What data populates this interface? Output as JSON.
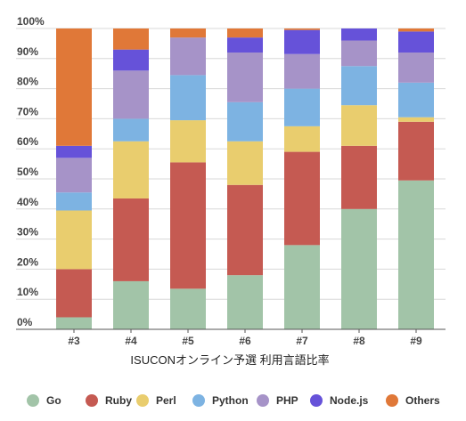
{
  "chart_data": {
    "type": "bar",
    "stacked": true,
    "normalized": true,
    "title": "",
    "xlabel": "ISUCONオンライン予選 利用言語比率",
    "ylabel": "",
    "ylim": [
      0,
      100
    ],
    "y_ticks": [
      "0%",
      "10%",
      "20%",
      "30%",
      "40%",
      "50%",
      "60%",
      "70%",
      "80%",
      "90%",
      "100%"
    ],
    "grid": true,
    "legend_position": "bottom",
    "categories": [
      "#3",
      "#4",
      "#5",
      "#6",
      "#7",
      "#8",
      "#9"
    ],
    "series": [
      {
        "name": "Go",
        "color": "#a2c4a8",
        "values": [
          4,
          16,
          13.5,
          18,
          28,
          40,
          49.5
        ]
      },
      {
        "name": "Ruby",
        "color": "#c55a52",
        "values": [
          16,
          27.5,
          42,
          30,
          31,
          21,
          19.5
        ]
      },
      {
        "name": "Perl",
        "color": "#e9cd6e",
        "values": [
          19.5,
          19,
          14,
          14.5,
          8.5,
          13.5,
          1.5
        ]
      },
      {
        "name": "Python",
        "color": "#7db3e2",
        "values": [
          6,
          7.5,
          15,
          13,
          12.5,
          13,
          11.5
        ]
      },
      {
        "name": "PHP",
        "color": "#a693c8",
        "values": [
          11.5,
          16,
          12.5,
          16.5,
          11.5,
          8.5,
          10
        ]
      },
      {
        "name": "Node.js",
        "color": "#6652d9",
        "values": [
          4,
          7,
          0,
          5,
          8,
          4,
          7
        ]
      },
      {
        "name": "Others",
        "color": "#e07838",
        "values": [
          39,
          7,
          3,
          3,
          0.5,
          0,
          1
        ]
      }
    ]
  }
}
